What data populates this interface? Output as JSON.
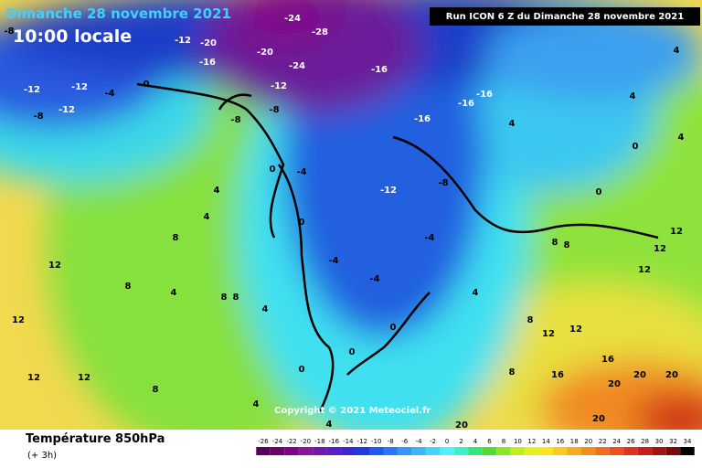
{
  "header": {
    "date": "Dimanche 28 novembre 2021",
    "time": "10:00 locale",
    "run": "Run ICON 6 Z du Dimanche 28 novembre 2021"
  },
  "copyright": "Copyright © 2021 Meteociel.fr",
  "legend": {
    "title": "Température 850hPa",
    "subtitle": "(+ 3h)"
  },
  "scale": {
    "labels": [
      -26,
      -24,
      -22,
      -20,
      -18,
      -16,
      -14,
      -12,
      -10,
      -8,
      -6,
      -4,
      -2,
      0,
      2,
      4,
      6,
      8,
      10,
      12,
      14,
      16,
      18,
      20,
      22,
      24,
      26,
      28,
      30,
      32,
      34
    ],
    "colors": [
      "#5a005a",
      "#6e006e",
      "#82008c",
      "#8c14a0",
      "#7814b4",
      "#5a1ec8",
      "#3c28d2",
      "#1e3cdc",
      "#1e5af0",
      "#2878f5",
      "#3296fa",
      "#3cb4ff",
      "#46d2ff",
      "#50f0ff",
      "#3cf0c8",
      "#32e678",
      "#50dc32",
      "#8ce628",
      "#bef01e",
      "#e6f01e",
      "#fae61e",
      "#fac81e",
      "#faaa1e",
      "#f58c1e",
      "#f06e1e",
      "#eb501e",
      "#e1321e",
      "#c81e1e",
      "#a01414",
      "#780a0a",
      "#000000"
    ]
  },
  "map": {
    "labels": [
      -8,
      -12,
      -20,
      -16,
      -24,
      -28,
      -20,
      -24,
      -16,
      -16,
      -16,
      -16,
      -12,
      -12,
      -4,
      -12,
      -8,
      0,
      -12,
      -8,
      -8,
      -4,
      -12,
      -8,
      -4,
      -4,
      -4,
      0,
      0,
      0,
      0,
      0,
      4,
      4,
      8,
      12,
      8,
      4,
      8,
      8,
      4,
      12,
      12,
      12,
      8,
      4,
      4,
      20,
      8,
      16,
      20,
      20,
      20,
      20,
      16,
      4,
      4,
      8,
      8,
      12,
      12,
      12,
      0,
      0,
      4,
      8,
      12,
      12,
      4,
      4
    ]
  }
}
